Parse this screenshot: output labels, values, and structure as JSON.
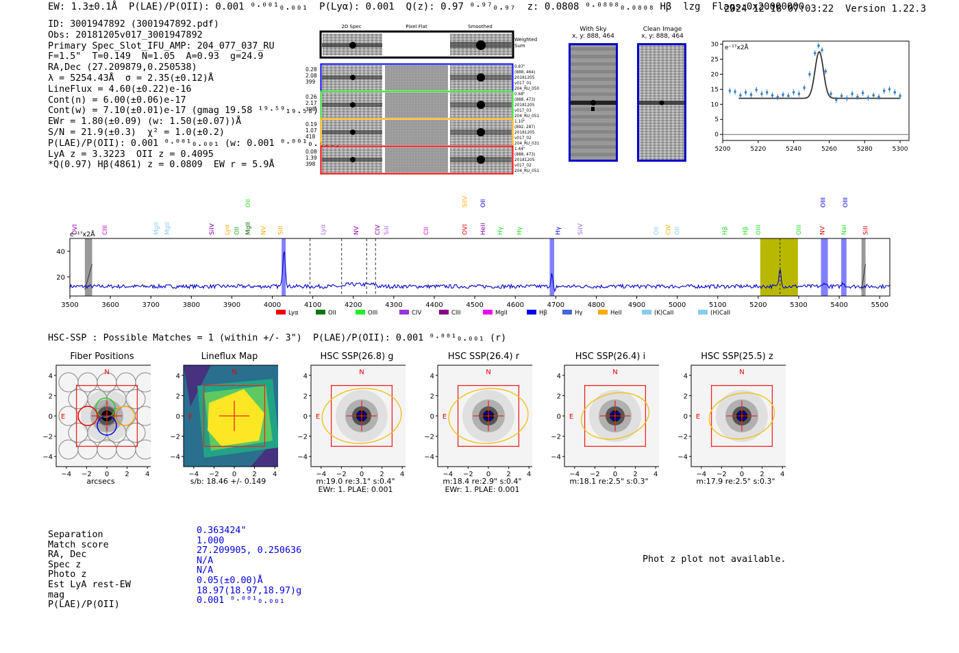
{
  "header": {
    "summary": "EW: 1.3±0.1Å  P(LAE)/P(OII): 0.001 ⁰·⁰⁰¹₀.₀₀₁  P(Lyα): 0.001  Q(z): 0.97 ⁰·⁹⁷₀.₉₇  z: 0.0808 ⁰·⁰⁸⁰⁸₀.₀₈₀₈ Hβ  lzg  Flags:0x20000000",
    "timestamp_version": "2024-12-18 07:03:22  Version 1.22.3"
  },
  "info": {
    "lines": [
      "ID: 3001947892 (3001947892.pdf)",
      "Obs: 20181205v017_3001947892",
      "Primary Spec_Slot_IFU_AMP: 204_077_037_RU",
      "F=1.5\"  T=0.149  N=1.05  A=0.93  g=24.9",
      "RA,Dec (27.209879,0.250538)",
      "λ = 5254.43Å  σ = 2.35(±0.12)Å",
      "LineFlux = 4.60(±0.22)e-16",
      "Cont(n) = 6.00(±0.06)e-17",
      "Cont(w) = 7.10(±0.01)e-17 (gmag 19.58 ¹⁹·⁵⁹₁₉.₅₈)",
      "EWr = 1.80(±0.09) (w: 1.50(±0.07))Å",
      "S/N = 21.9(±0.3)  χ² = 1.0(±0.2)",
      "P(LAE)/P(OII): 0.001 ⁰·⁰⁰¹₀.₀₀₁ (w: 0.001 ⁰·⁰⁰¹₀.₀₀₁)",
      "LyA z = 3.3223  OII z = 0.4095",
      "*Q(0.97) Hβ(4861) z = 0.0809  EW r = 5.9Å"
    ]
  },
  "cutouts": {
    "col_headers": [
      "2D Spec",
      "Pixel Flat",
      "Smoothed"
    ],
    "weighted_label": "Weighted Sum",
    "rows": [
      {
        "left": [
          "0.28",
          "2.08",
          "399"
        ],
        "right": [
          "0.87\"",
          "(888, 464)",
          "20181205",
          "v017_01",
          "204_RU_050"
        ],
        "color": "#0000ee"
      },
      {
        "left": [
          "0.26",
          "2.17",
          "398"
        ],
        "right": [
          "0.68\"",
          "(888, 473)",
          "20181205",
          "v017_03",
          "204_RU_051"
        ],
        "color": "#22dd22"
      },
      {
        "left": [
          "0.19",
          "1.07",
          "418"
        ],
        "right": [
          "1.10\"",
          "(892, 287)",
          "20181205",
          "v017_02",
          "204_RU_031"
        ],
        "color": "#ffaa00"
      },
      {
        "left": [
          "0.08",
          "1.39",
          "398"
        ],
        "right": [
          "1.44\"",
          "(888, 473)",
          "20181205",
          "v017_02",
          "204_RU_051"
        ],
        "color": "#ee0000"
      }
    ],
    "with_sky": {
      "title": "With Sky",
      "coords": "x, y: 888, 464"
    },
    "clean": {
      "title": "Clean Image",
      "coords": "x, y: 888, 464"
    }
  },
  "zoom_chart": {
    "type": "scatter",
    "ylabel": "e⁻¹⁷x2Å",
    "xlim": [
      5200,
      5305
    ],
    "ylim": [
      -2,
      31
    ],
    "xticks": [
      5200,
      5220,
      5240,
      5260,
      5280,
      5300
    ],
    "yticks": [
      0,
      5,
      10,
      15,
      20,
      25,
      30
    ],
    "x": [
      5204,
      5207,
      5210,
      5213,
      5216,
      5219,
      5222,
      5225,
      5228,
      5231,
      5234,
      5237,
      5240,
      5243,
      5246,
      5249,
      5252,
      5254,
      5256,
      5258,
      5261,
      5264,
      5267,
      5270,
      5273,
      5276,
      5279,
      5282,
      5285,
      5288,
      5291,
      5294,
      5297,
      5300
    ],
    "y": [
      14.5,
      14.2,
      13,
      14,
      13.2,
      14.8,
      13.5,
      14,
      13,
      12.4,
      13.2,
      12.8,
      14,
      13.5,
      15.5,
      20,
      27,
      29.5,
      28,
      21,
      13.5,
      11.5,
      12.8,
      12,
      13.5,
      12.5,
      13.8,
      12.2,
      13,
      12.5,
      14.5,
      15,
      14,
      12.8
    ],
    "fit_baseline": 12
  },
  "full_spectrum": {
    "type": "line",
    "ylabel": "e⁻¹⁷x2Å",
    "xlim": [
      3500,
      5525
    ],
    "ylim": [
      5,
      50
    ],
    "xticks": [
      3500,
      3600,
      3700,
      3800,
      3900,
      4000,
      4100,
      4200,
      4300,
      4400,
      4500,
      4600,
      4700,
      4800,
      4900,
      5000,
      5100,
      5200,
      5300,
      5400,
      5500
    ],
    "yticks": [
      20,
      40
    ],
    "line_labels": [
      {
        "x": 3512,
        "label": "OVI",
        "color": "#8800aa",
        "row": 1
      },
      {
        "x": 3586,
        "label": "CIII",
        "color": "#cc00cc",
        "row": 1
      },
      {
        "x": 3713,
        "label": "MgII",
        "color": "#88ccee",
        "row": 1
      },
      {
        "x": 3740,
        "label": "MgII",
        "color": "#88ccee",
        "row": 1
      },
      {
        "x": 3850,
        "label": "SiIV",
        "color": "#8800aa",
        "row": 1
      },
      {
        "x": 3888,
        "label": "Lyα",
        "color": "#ffaa00",
        "row": 1
      },
      {
        "x": 3912,
        "label": "OII",
        "color": "#22aa22",
        "row": 1
      },
      {
        "x": 3940,
        "label": "MgII",
        "color": "#006600",
        "row": 1
      },
      {
        "x": 3978,
        "label": "NV",
        "color": "#ffaa00",
        "row": 1
      },
      {
        "x": 4020,
        "label": "SiII",
        "color": "#ffaa00",
        "row": 1
      },
      {
        "x": 4125,
        "label": "Lyα",
        "color": "#aa66dd",
        "row": 1
      },
      {
        "x": 4207,
        "label": "NV",
        "color": "#8800aa",
        "row": 1
      },
      {
        "x": 4260,
        "label": "CIV",
        "color": "#8800aa",
        "row": 1
      },
      {
        "x": 4282,
        "label": "SiII",
        "color": "#aa66dd",
        "row": 1
      },
      {
        "x": 4380,
        "label": "CII",
        "color": "#cc00cc",
        "row": 1
      },
      {
        "x": 4475,
        "label": "OVI",
        "color": "#ee0000",
        "row": 1
      },
      {
        "x": 4520,
        "label": "HeII",
        "color": "#8800aa",
        "row": 1
      },
      {
        "x": 4562,
        "label": "Hγ",
        "color": "#22dd22",
        "row": 1
      },
      {
        "x": 4610,
        "label": "Hγ",
        "color": "#22dd22",
        "row": 1
      },
      {
        "x": 4705,
        "label": "Hγ",
        "color": "#0000ee",
        "row": 1
      },
      {
        "x": 4760,
        "label": "SiIV",
        "color": "#aa66dd",
        "row": 1
      },
      {
        "x": 4948,
        "label": "OII",
        "color": "#88ccee",
        "row": 1
      },
      {
        "x": 4978,
        "label": "CIV",
        "color": "#ffaa00",
        "row": 1
      },
      {
        "x": 5000,
        "label": "OII",
        "color": "#88ccee",
        "row": 1
      },
      {
        "x": 5117,
        "label": "Hβ",
        "color": "#22dd22",
        "row": 1
      },
      {
        "x": 5168,
        "label": "Hβ",
        "color": "#22dd22",
        "row": 1
      },
      {
        "x": 5200,
        "label": "OIII",
        "color": "#22dd22",
        "row": 1
      },
      {
        "x": 5300,
        "label": "OIII",
        "color": "#22dd22",
        "row": 1
      },
      {
        "x": 5358,
        "label": "NV",
        "color": "#ee0000",
        "row": 1
      },
      {
        "x": 5412,
        "label": "NaI",
        "color": "#22dd22",
        "row": 1
      },
      {
        "x": 5465,
        "label": "SiII",
        "color": "#ee0000",
        "row": 1
      },
      {
        "x": 3940,
        "label": "OII",
        "color": "#22dd22",
        "row": 0
      },
      {
        "x": 4475,
        "label": "SiIV",
        "color": "#ffaa00",
        "row": 0
      },
      {
        "x": 4520,
        "label": "OII",
        "color": "#0000ee",
        "row": 0
      },
      {
        "x": 5360,
        "label": "OIII",
        "color": "#0000ee",
        "row": 0
      },
      {
        "x": 5415,
        "label": "OIII",
        "color": "#0000ee",
        "row": 0
      }
    ],
    "legend": [
      {
        "label": "Lyα",
        "color": "#ee0000"
      },
      {
        "label": "OII",
        "color": "#007700"
      },
      {
        "label": "OIII",
        "color": "#22ee22"
      },
      {
        "label": "CIV",
        "color": "#9933dd"
      },
      {
        "label": "CIII",
        "color": "#880088"
      },
      {
        "label": "MgII",
        "color": "#ee00ee"
      },
      {
        "label": "Hβ",
        "color": "#0000ee"
      },
      {
        "label": "Hγ",
        "color": "#4466dd"
      },
      {
        "label": "HeII",
        "color": "#ffaa00"
      },
      {
        "label": "(K)CaII",
        "color": "#88ccee"
      },
      {
        "label": "(H)CaII",
        "color": "#88ccee"
      }
    ]
  },
  "hsc": {
    "title": "HSC-SSP : Possible Matches = 1 (within +/- 3\")  P(LAE)/P(OII): 0.001 ⁰·⁰⁰¹₀.₀₀₁ (r)",
    "panels": [
      {
        "title": "Fiber Positions",
        "caption": [
          "arcsecs"
        ],
        "kind": "fiber"
      },
      {
        "title": "Lineflux Map",
        "caption": [
          "s/b: 18.46 +/- 0.149"
        ],
        "kind": "lineflux"
      },
      {
        "title": "HSC SSP(26.8) g",
        "caption": [
          "m:19.0  re:3.1\"  s:0.4\"",
          "EWr: 1. PLAE: 0.001"
        ],
        "kind": "galaxy"
      },
      {
        "title": "HSC SSP(26.4) r",
        "caption": [
          "m:18.4  re:2.9\"  s:0.4\"",
          "EWr: 1. PLAE: 0.001"
        ],
        "kind": "galaxy"
      },
      {
        "title": "HSC SSP(26.4) i",
        "caption": [
          "m:18.1  re:2.5\"  s:0.3\""
        ],
        "kind": "galaxy"
      },
      {
        "title": "HSC SSP(25.5) z",
        "caption": [
          "m:17.9  re:2.5\"  s:0.3\""
        ],
        "kind": "galaxy"
      }
    ],
    "axis_ticks": [
      "4",
      "2",
      "0",
      "−2",
      "−4"
    ],
    "x_ticks": [
      "−4",
      "−2",
      "0",
      "2",
      "4"
    ],
    "north": "N",
    "east": "E"
  },
  "match": {
    "labels": [
      "Separation",
      "Match score",
      "RA, Dec",
      "Spec z",
      "Photo z",
      "Est LyA rest-EW",
      "mag",
      "P(LAE)/P(OII)"
    ],
    "values": [
      "0.363424\"",
      "1.000",
      "27.209905, 0.250636",
      "N/A",
      "N/A",
      "0.05(±0.00)Å",
      "18.97(18.97,18.97)g",
      "0.001 ⁰·⁰⁰¹₀.₀₀₁"
    ]
  },
  "photz_note": "Phot z plot not available."
}
